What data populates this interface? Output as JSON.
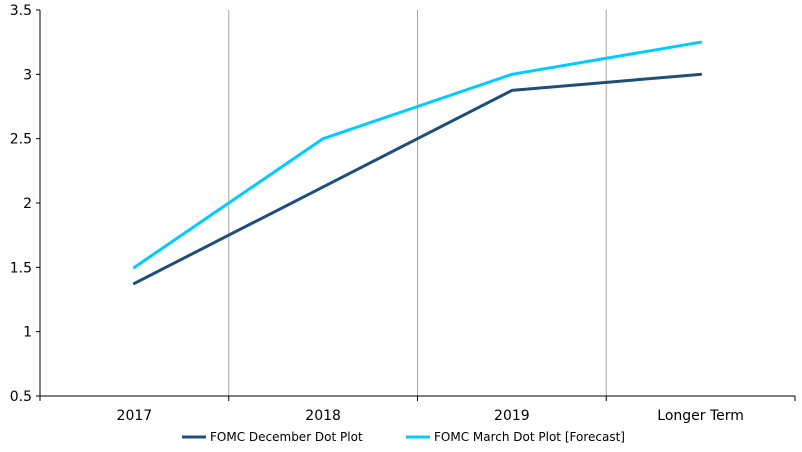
{
  "chart_data": {
    "type": "line",
    "categories": [
      "2017",
      "2018",
      "2019",
      "Longer Term"
    ],
    "series": [
      {
        "name": "FOMC December Dot Plot",
        "values": [
          1.375,
          2.125,
          2.875,
          3.0
        ],
        "color": "#1f4e79"
      },
      {
        "name": "FOMC March Dot Plot [Forecast]",
        "values": [
          1.5,
          2.5,
          3.0,
          3.25
        ],
        "color": "#00ccff"
      }
    ],
    "ylim": [
      0.5,
      3.5
    ],
    "yticks": [
      "0.5",
      "1",
      "1.5",
      "2",
      "2.5",
      "3",
      "3.5"
    ],
    "vertical_gridlines": true,
    "legend_position": "bottom"
  }
}
